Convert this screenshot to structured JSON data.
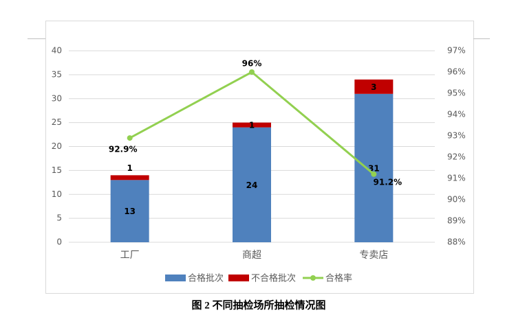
{
  "chart_data": {
    "type": "bar_line",
    "caption": "图 2 不同抽检场所抽检情况图",
    "categories": [
      "工厂",
      "商超",
      "专卖店"
    ],
    "series": [
      {
        "name": "合格批次",
        "color": "#4f81bd",
        "type": "bar",
        "values": [
          13,
          24,
          31
        ]
      },
      {
        "name": "不合格批次",
        "color": "#c00000",
        "type": "bar",
        "values": [
          1,
          1,
          3
        ]
      },
      {
        "name": "合格率",
        "color": "#92d050",
        "type": "line",
        "axis": "y2",
        "values": [
          92.9,
          96,
          91.2
        ],
        "value_labels": [
          "92.9%",
          "96%",
          "91.2%"
        ]
      }
    ],
    "ylim": [
      0,
      40
    ],
    "yticks": [
      0,
      5,
      10,
      15,
      20,
      25,
      30,
      35,
      40
    ],
    "y2lim": [
      88,
      97
    ],
    "y2ticks": [
      {
        "value": 88,
        "label": "88%"
      },
      {
        "value": 89,
        "label": "89%"
      },
      {
        "value": 90,
        "label": "90%"
      },
      {
        "value": 91,
        "label": "91%"
      },
      {
        "value": 92,
        "label": "92%"
      },
      {
        "value": 93,
        "label": "93%"
      },
      {
        "value": 94,
        "label": "94%"
      },
      {
        "value": 95,
        "label": "95%"
      },
      {
        "value": 96,
        "label": "96%"
      },
      {
        "value": 97,
        "label": "97%"
      }
    ],
    "grid": true,
    "legend": "bottom"
  }
}
